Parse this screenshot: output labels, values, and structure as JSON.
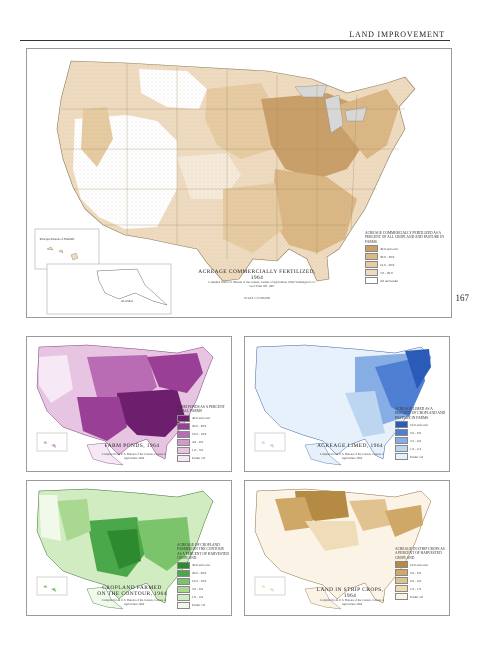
{
  "header": {
    "section_title": "LAND IMPROVEMENT",
    "page_number": "167"
  },
  "maps": [
    {
      "title": "ACREAGE COMMERCIALLY FERTILIZED, 1964",
      "source": "Compiled from U.S. Bureau of the Census, Census of Agriculture 1964; Washington U.S. Govt Print Off. 1967",
      "legend_title": "ACREAGE COMMERCIALLY FERTILIZED AS A PERCENT OF ALL CROPLAND AND PASTURE IN FARMS",
      "legend": [
        "40.0 and over",
        "30.0 - 39.9",
        "21.0 - 29.9",
        "7.0 - 20.9",
        "4.0 and under"
      ],
      "colors": [
        "#c9a06a",
        "#dbb886",
        "#e6cba3",
        "#efdcc0",
        "#ffffff"
      ],
      "scale": "SCALE 1:17,000,000",
      "inset_labels": [
        "Principal Islands of HAWAII",
        "ALASKA"
      ]
    },
    {
      "title": "FARM PONDS, 1964",
      "source": "Compiled from U.S. Bureau of the Census, Census of Agriculture 1964",
      "legend_title": "FARM PONDS AS A PERCENT OF ALL FARMS",
      "legend": [
        "40.0 and over",
        "20.0 - 39.9",
        "10.0 - 19.9",
        "4.0 - 9.9",
        "1.0 - 3.9",
        "Under 1.0"
      ],
      "colors": [
        "#6d1f6e",
        "#9a3f96",
        "#b96cb4",
        "#d199cc",
        "#e6c4e2",
        "#f6e8f4"
      ]
    },
    {
      "title": "ACREAGE LIMED, 1964",
      "source": "Compiled from U.S. Bureau of the Census, Census of Agriculture 1964",
      "legend_title": "ACREAGE LIMED AS A PERCENT OF CROPLAND AND PASTURE IN FARMS",
      "legend": [
        "10.0 and over",
        "5.0 - 9.9",
        "2.5 - 4.9",
        "1.0 - 2.4",
        "Under 1.0"
      ],
      "colors": [
        "#2b5bb8",
        "#4f7fd3",
        "#86aee4",
        "#bcd6f1",
        "#e6f1fb"
      ]
    },
    {
      "title": "CROPLAND FARMED ON THE CONTOUR, 1964",
      "source": "Compiled from U.S. Bureau of the Census, Census of Agriculture 1964",
      "legend_title": "ACREAGE OF CROPLAND FARMED ON THE CONTOUR AS A PERCENT OF HARVESTED CROPLAND",
      "legend": [
        "30.0 and over",
        "20.0 - 29.9",
        "10.0 - 19.9",
        "5.0 - 9.9",
        "1.0 - 4.9",
        "Under 1.0"
      ],
      "colors": [
        "#2e8a2e",
        "#4aa84a",
        "#7cc46c",
        "#a9d990",
        "#d2ecc2",
        "#f0f9ea"
      ]
    },
    {
      "title": "LAND IN STRIP CROPS, 1964",
      "source": "Compiled from U.S. Bureau of the Census, Census of Agriculture 1964",
      "legend_title": "ACREAGE IN STRIP CROPS AS A PERCENT OF HARVESTED CROPLAND",
      "legend": [
        "10.0 and over",
        "5.0 - 9.9",
        "2.0 - 4.9",
        "1.0 - 1.9",
        "Under 1.0"
      ],
      "colors": [
        "#b58a45",
        "#cfa766",
        "#e1c391",
        "#efdcb8",
        "#fbf4e6"
      ]
    }
  ]
}
